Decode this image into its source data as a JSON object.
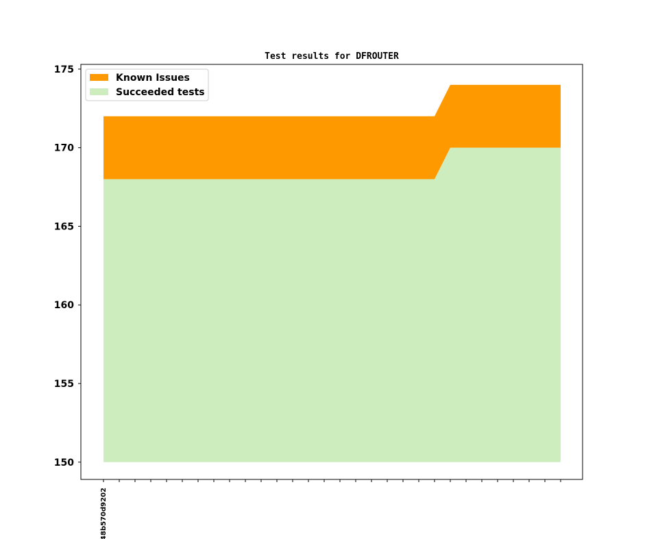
{
  "chart_data": {
    "type": "area",
    "title": "Test results for DFROUTER",
    "xlabel": "",
    "ylabel": "",
    "ylim": [
      148.9,
      175.3
    ],
    "yticks": [
      150,
      155,
      160,
      165,
      170,
      175
    ],
    "x_count": 30,
    "x_tick_labels": [
      {
        "index": 0,
        "label": "48b570d9202"
      }
    ],
    "series": [
      {
        "name": "Known Issues",
        "color": "#ff9900",
        "lower": [
          168,
          168,
          168,
          168,
          168,
          168,
          168,
          168,
          168,
          168,
          168,
          168,
          168,
          168,
          168,
          168,
          168,
          168,
          168,
          168,
          168,
          168,
          170,
          170,
          170,
          170,
          170,
          170,
          170,
          170
        ],
        "upper": [
          172,
          172,
          172,
          172,
          172,
          172,
          172,
          172,
          172,
          172,
          172,
          172,
          172,
          172,
          172,
          172,
          172,
          172,
          172,
          172,
          172,
          172,
          174,
          174,
          174,
          174,
          174,
          174,
          174,
          174
        ]
      },
      {
        "name": "Succeeded tests",
        "color": "#ceedbe",
        "lower": [
          150,
          150,
          150,
          150,
          150,
          150,
          150,
          150,
          150,
          150,
          150,
          150,
          150,
          150,
          150,
          150,
          150,
          150,
          150,
          150,
          150,
          150,
          150,
          150,
          150,
          150,
          150,
          150,
          150,
          150
        ],
        "upper": [
          168,
          168,
          168,
          168,
          168,
          168,
          168,
          168,
          168,
          168,
          168,
          168,
          168,
          168,
          168,
          168,
          168,
          168,
          168,
          168,
          168,
          168,
          170,
          170,
          170,
          170,
          170,
          170,
          170,
          170
        ]
      }
    ],
    "legend_position": "top-left",
    "grid": false
  }
}
